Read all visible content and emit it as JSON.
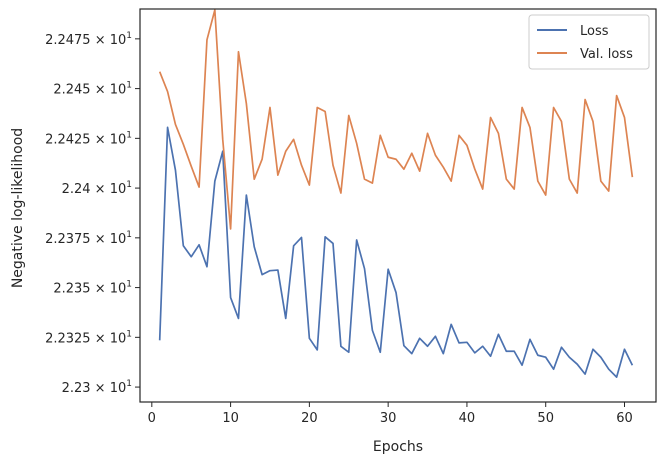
{
  "chart_data": {
    "type": "line",
    "xlabel": "Epochs",
    "ylabel": "Negative log-likelihood",
    "xlim": [
      -1.5,
      64
    ],
    "ylim": [
      22.2925,
      22.49
    ],
    "grid": false,
    "legend_position": "top-right",
    "x_ticks": [
      {
        "value": 0,
        "label": "0"
      },
      {
        "value": 10,
        "label": "10"
      },
      {
        "value": 20,
        "label": "20"
      },
      {
        "value": 30,
        "label": "30"
      },
      {
        "value": 40,
        "label": "40"
      },
      {
        "value": 50,
        "label": "50"
      },
      {
        "value": 60,
        "label": "60"
      }
    ],
    "y_ticks": [
      {
        "value": 22.3,
        "label": "2.23 × 10",
        "exp": "1"
      },
      {
        "value": 22.325,
        "label": "2.2325 × 10",
        "exp": "1"
      },
      {
        "value": 22.35,
        "label": "2.235 × 10",
        "exp": "1"
      },
      {
        "value": 22.375,
        "label": "2.2375 × 10",
        "exp": "1"
      },
      {
        "value": 22.4,
        "label": "2.24 × 10",
        "exp": "1"
      },
      {
        "value": 22.425,
        "label": "2.2425 × 10",
        "exp": "1"
      },
      {
        "value": 22.45,
        "label": "2.245 × 10",
        "exp": "1"
      },
      {
        "value": 22.475,
        "label": "2.2475 × 10",
        "exp": "1"
      }
    ],
    "x": [
      1,
      2,
      3,
      4,
      5,
      6,
      7,
      8,
      9,
      10,
      11,
      12,
      13,
      14,
      15,
      16,
      17,
      18,
      19,
      20,
      21,
      22,
      23,
      24,
      25,
      26,
      27,
      28,
      29,
      30,
      31,
      32,
      33,
      34,
      35,
      36,
      37,
      38,
      39,
      40,
      41,
      42,
      43,
      44,
      45,
      46,
      47,
      48,
      49,
      50,
      51,
      52,
      53,
      54,
      55,
      56,
      57,
      58,
      59,
      60,
      61
    ],
    "series": [
      {
        "name": "Loss",
        "color": "#4c72b0",
        "values": [
          22.3235,
          22.4305,
          22.409,
          22.371,
          22.3655,
          22.3715,
          22.3605,
          22.4035,
          22.4185,
          22.345,
          22.3345,
          22.3965,
          22.3705,
          22.3565,
          22.3585,
          22.3588,
          22.3345,
          22.371,
          22.3752,
          22.3245,
          22.3187,
          22.3755,
          22.3722,
          22.3205,
          22.3175,
          22.3739,
          22.3595,
          22.3285,
          22.3175,
          22.3592,
          22.3475,
          22.3208,
          22.3168,
          22.3245,
          22.3205,
          22.3255,
          22.3168,
          22.3315,
          22.3222,
          22.3225,
          22.3172,
          22.3205,
          22.3155,
          22.3265,
          22.318,
          22.318,
          22.311,
          22.324,
          22.316,
          22.315,
          22.309,
          22.32,
          22.315,
          22.3115,
          22.3065,
          22.319,
          22.315,
          22.309,
          22.305,
          22.319,
          22.311
        ]
      },
      {
        "name": "Val. loss",
        "color": "#dd8452",
        "values": [
          22.4585,
          22.4485,
          22.432,
          22.422,
          22.411,
          22.4005,
          22.4745,
          22.4895,
          22.4245,
          22.3795,
          22.4685,
          22.4425,
          22.4045,
          22.4145,
          22.4405,
          22.4065,
          22.4185,
          22.4245,
          22.4115,
          22.4015,
          22.4405,
          22.4385,
          22.4115,
          22.3975,
          22.4365,
          22.4225,
          22.4045,
          22.4025,
          22.4265,
          22.4155,
          22.4145,
          22.4095,
          22.4175,
          22.4085,
          22.4275,
          22.4165,
          22.4105,
          22.4035,
          22.4265,
          22.4215,
          22.4095,
          22.3995,
          22.4355,
          22.4275,
          22.4045,
          22.3995,
          22.4405,
          22.4305,
          22.4035,
          22.3965,
          22.4405,
          22.4335,
          22.4045,
          22.3975,
          22.4445,
          22.4335,
          22.4035,
          22.3985,
          22.4465,
          22.4355,
          22.4055
        ]
      }
    ]
  }
}
